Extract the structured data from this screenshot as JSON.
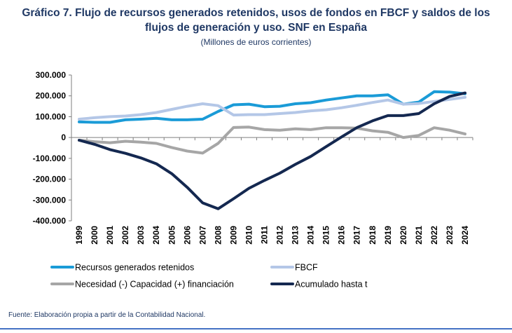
{
  "title_line1": "Gráfico 7. Flujo de recursos generados retenidos, usos de fondos en FBCF y saldos de los",
  "title_line2": "flujos de generación y uso. SNF en España",
  "subtitle": "(Millones de euros corrientes)",
  "footer": "Fuente: Elaboración propia a partir de la Contabilidad Nacional.",
  "chart_data": {
    "type": "line",
    "title": "Gráfico 7. Flujo de recursos generados retenidos, usos de fondos en FBCF y saldos de los flujos de generación y uso. SNF en España",
    "subtitle": "(Millones de euros corrientes)",
    "xlabel": "",
    "ylabel": "",
    "ylim": [
      -400000,
      300000
    ],
    "yticks": [
      300000,
      200000,
      100000,
      0,
      -100000,
      -200000,
      -300000,
      -400000
    ],
    "ytick_labels": [
      "300.000",
      "200.000",
      "100.000",
      "0",
      "-100.000",
      "-200.000",
      "-300.000",
      "-400.000"
    ],
    "x": [
      "1999",
      "2000",
      "2001",
      "2002",
      "2003",
      "2004",
      "2005",
      "2006",
      "2007",
      "2008",
      "2009",
      "2010",
      "2011",
      "2012",
      "2013",
      "2014",
      "2015",
      "2016",
      "2017",
      "2018",
      "2019",
      "2020",
      "2021",
      "2022",
      "2023",
      "2024"
    ],
    "grid": false,
    "legend_position": "bottom",
    "series": [
      {
        "name": "Recursos generados retenidos",
        "color": "#1a9bd7",
        "width": 4,
        "values": [
          75000,
          73000,
          73000,
          85000,
          88000,
          92000,
          85000,
          85000,
          88000,
          125000,
          157000,
          160000,
          148000,
          150000,
          162000,
          167000,
          180000,
          190000,
          200000,
          200000,
          205000,
          160000,
          170000,
          220000,
          218000,
          210000
        ]
      },
      {
        "name": "FBCF",
        "color": "#b4c7e7",
        "width": 4,
        "values": [
          88000,
          95000,
          100000,
          103000,
          110000,
          120000,
          135000,
          150000,
          162000,
          153000,
          108000,
          110000,
          110000,
          115000,
          120000,
          128000,
          133000,
          143000,
          155000,
          168000,
          180000,
          160000,
          163000,
          173000,
          183000,
          193000
        ]
      },
      {
        "name": "Necesidad (-) Capacidad (+) financiación",
        "color": "#a6a6a6",
        "width": 4,
        "values": [
          -13000,
          -20000,
          -25000,
          -18000,
          -22000,
          -28000,
          -48000,
          -65000,
          -75000,
          -28000,
          48000,
          50000,
          38000,
          35000,
          42000,
          38000,
          47000,
          47000,
          45000,
          32000,
          25000,
          0,
          10000,
          47000,
          35000,
          17000
        ]
      },
      {
        "name": "Acumulado hasta t",
        "color": "#142850",
        "width": 4,
        "values": [
          -13000,
          -33000,
          -58000,
          -76000,
          -98000,
          -126000,
          -174000,
          -239000,
          -314000,
          -342000,
          -294000,
          -244000,
          -206000,
          -171000,
          -129000,
          -91000,
          -44000,
          3000,
          48000,
          80000,
          105000,
          105000,
          115000,
          162000,
          197000,
          214000
        ]
      }
    ]
  }
}
